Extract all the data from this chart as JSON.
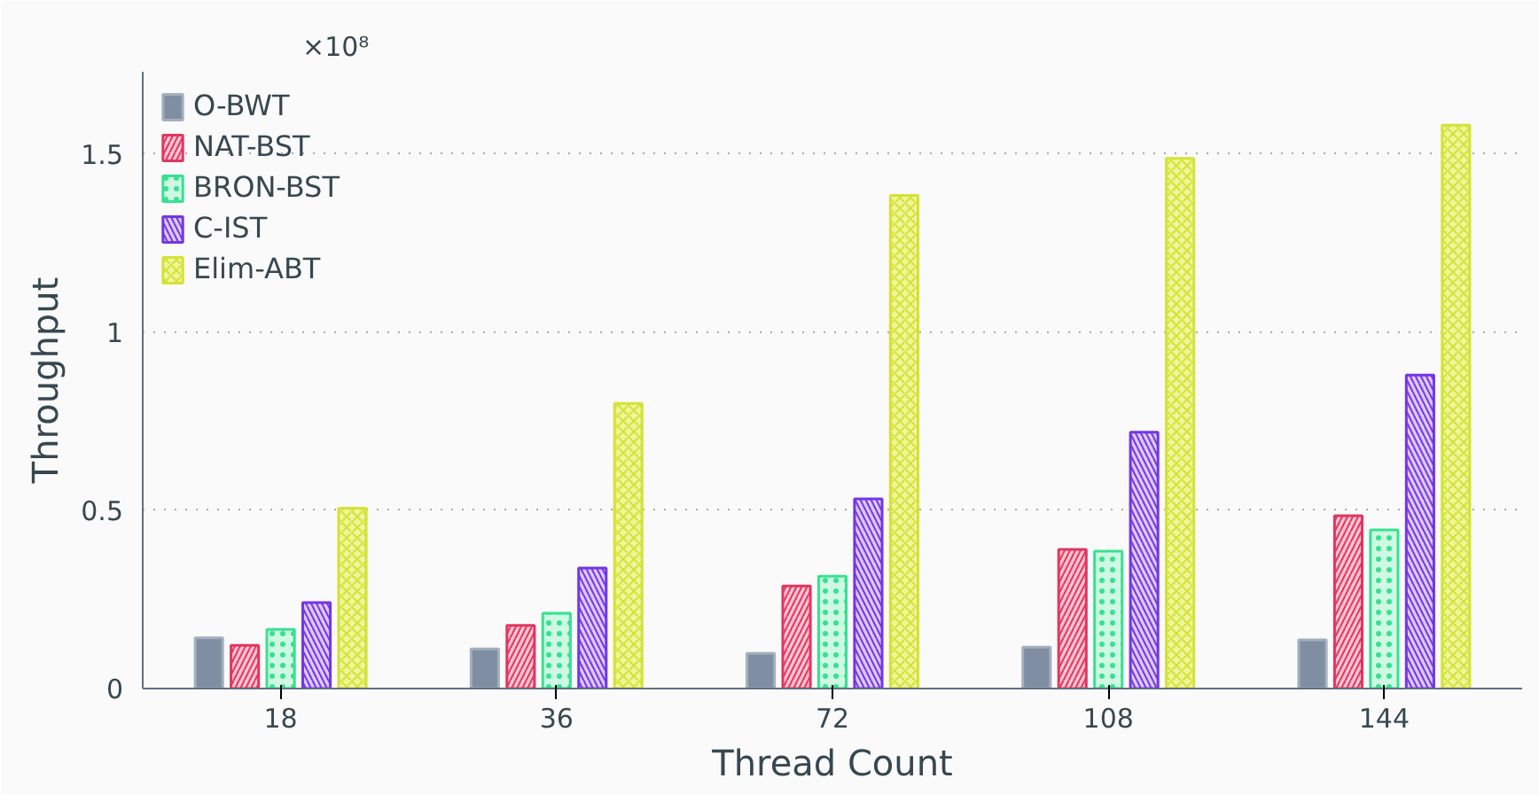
{
  "chart_data": {
    "type": "bar",
    "xlabel": "Thread Count",
    "ylabel": "Throughput",
    "annotations": [
      "×10⁸"
    ],
    "categories": [
      "18",
      "36",
      "72",
      "108",
      "144"
    ],
    "series": [
      {
        "name": "O-BWT",
        "color": "#7f8ea3",
        "values": [
          0.142,
          0.111,
          0.099,
          0.116,
          0.137
        ]
      },
      {
        "name": "NAT-BST",
        "color": "#ffc4d2",
        "values": [
          0.121,
          0.177,
          0.288,
          0.39,
          0.485
        ]
      },
      {
        "name": "BRON-BST",
        "color": "#cff8e4",
        "values": [
          0.166,
          0.211,
          0.315,
          0.385,
          0.445
        ]
      },
      {
        "name": "C-IST",
        "color": "#dcc8ff",
        "values": [
          0.241,
          0.338,
          0.532,
          0.719,
          0.879
        ]
      },
      {
        "name": "Elim-ABT",
        "color": "#eef59a",
        "values": [
          0.506,
          0.8,
          1.383,
          1.487,
          1.58
        ]
      }
    ],
    "ylim": [
      0,
      1.73
    ],
    "yticks": [
      0,
      0.5,
      1,
      1.5
    ],
    "grid": "y",
    "legend": "top left"
  }
}
